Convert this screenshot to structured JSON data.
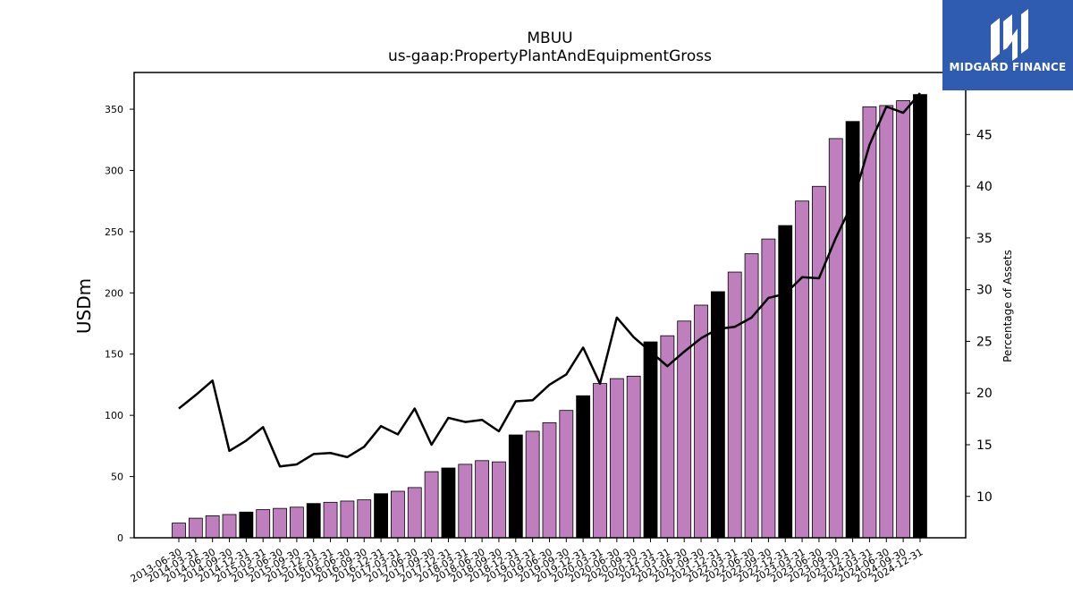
{
  "brand": {
    "name": "MIDGARD FINANCE",
    "bg_color": "#2f5bb0",
    "icon": "midgard-logo-icon"
  },
  "chart_data": {
    "type": "bar",
    "title": "MBUU",
    "subtitle": "us-gaap:PropertyPlantAndEquipmentGross",
    "ylabel": "USDm",
    "y2label": "Percentage of Assets",
    "ylim": [
      0,
      380
    ],
    "y2lim": [
      6,
      51
    ],
    "yticks": [
      0,
      50,
      100,
      150,
      200,
      250,
      300,
      350
    ],
    "y2ticks": [
      10,
      15,
      20,
      25,
      30,
      35,
      40,
      45
    ],
    "categories": [
      "2013-06-30",
      "2014-03-31",
      "2014-06-30",
      "2014-09-30",
      "2014-12-31",
      "2015-03-31",
      "2015-06-30",
      "2015-09-30",
      "2015-12-31",
      "2016-03-31",
      "2016-06-30",
      "2016-09-30",
      "2016-12-31",
      "2017-03-31",
      "2017-06-30",
      "2017-09-30",
      "2017-12-31",
      "2018-03-31",
      "2018-06-30",
      "2018-09-30",
      "2018-12-31",
      "2019-03-31",
      "2019-06-30",
      "2019-09-30",
      "2019-12-31",
      "2020-03-31",
      "2020-06-30",
      "2020-09-30",
      "2020-12-31",
      "2021-03-31",
      "2021-06-30",
      "2021-09-30",
      "2021-12-31",
      "2022-03-31",
      "2022-06-30",
      "2022-09-30",
      "2022-12-31",
      "2023-03-31",
      "2023-06-30",
      "2023-09-30",
      "2023-12-31",
      "2024-03-31",
      "2024-06-30",
      "2024-09-30",
      "2024-12-31"
    ],
    "series": [
      {
        "kind": "bar",
        "axis": "left",
        "values": [
          12,
          16,
          18,
          19,
          21,
          23,
          24,
          25,
          28,
          29,
          30,
          31,
          36,
          38,
          41,
          54,
          57,
          60,
          63,
          62,
          84,
          87,
          94,
          104,
          116,
          126,
          130,
          132,
          160,
          165,
          177,
          190,
          201,
          217,
          232,
          244,
          255,
          275,
          287,
          326,
          340,
          352,
          353,
          357,
          362
        ],
        "highlight_color": "#000000",
        "color": "#bf7fbf",
        "highlight_indices": [
          4,
          8,
          12,
          16,
          20,
          24,
          28,
          32,
          36,
          40,
          44
        ]
      },
      {
        "kind": "line",
        "axis": "right",
        "color": "#000000",
        "values": [
          18.5,
          19.8,
          21.2,
          14.4,
          15.4,
          16.7,
          12.9,
          13.1,
          14.1,
          14.2,
          13.8,
          14.8,
          16.8,
          16.0,
          18.5,
          15.0,
          17.6,
          17.2,
          17.4,
          16.3,
          19.2,
          19.3,
          20.8,
          21.8,
          24.4,
          20.9,
          27.3,
          25.4,
          24.0,
          22.6,
          24.0,
          25.3,
          26.2,
          26.4,
          27.3,
          29.2,
          29.6,
          31.2,
          31.1,
          35.0,
          38.4,
          44.0,
          47.7,
          47.1,
          49.0
        ]
      }
    ]
  }
}
